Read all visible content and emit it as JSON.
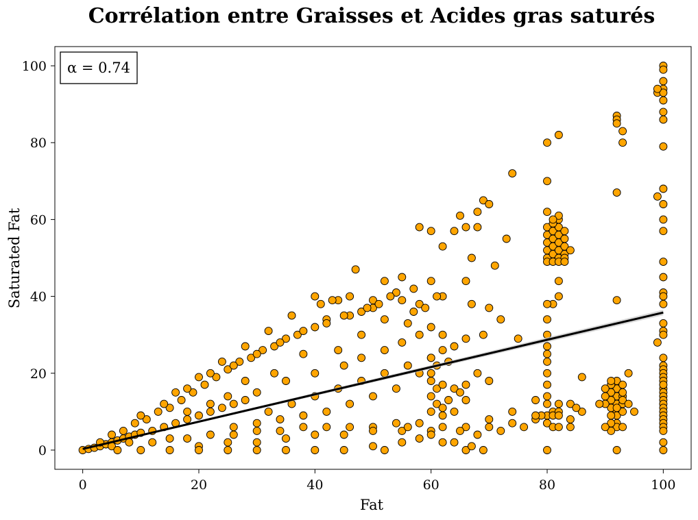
{
  "chart_data": {
    "type": "scatter",
    "title": "Corrélation entre Graisses et Acides gras saturés",
    "xlabel": "Fat",
    "ylabel": "Saturated Fat",
    "xlim": [
      -4.8,
      104.8
    ],
    "ylim": [
      -5,
      105
    ],
    "xticks": [
      0,
      20,
      40,
      60,
      80,
      100
    ],
    "yticks": [
      0,
      20,
      40,
      60,
      80,
      100
    ],
    "grid": false,
    "annotation": "α = 0.74",
    "marker_color": "#ffa500",
    "marker_edge_color": "#000000",
    "regression": {
      "x": [
        0,
        100
      ],
      "y": [
        0.3,
        35.8
      ],
      "color": "#000000",
      "ci_color": "#c8c8c8"
    },
    "points": [
      [
        0,
        0
      ],
      [
        1,
        0.3
      ],
      [
        2,
        0.6
      ],
      [
        3,
        1
      ],
      [
        4,
        1.5
      ],
      [
        5,
        2
      ],
      [
        6,
        2.5
      ],
      [
        7,
        3
      ],
      [
        8,
        3.5
      ],
      [
        9,
        4
      ],
      [
        10,
        4.5
      ],
      [
        12,
        5
      ],
      [
        14,
        6
      ],
      [
        16,
        7
      ],
      [
        18,
        8
      ],
      [
        20,
        9
      ],
      [
        22,
        10
      ],
      [
        24,
        11
      ],
      [
        26,
        12
      ],
      [
        28,
        13
      ],
      [
        3,
        2
      ],
      [
        5,
        4
      ],
      [
        7,
        5
      ],
      [
        9,
        7
      ],
      [
        11,
        8
      ],
      [
        13,
        10
      ],
      [
        15,
        11
      ],
      [
        17,
        13
      ],
      [
        19,
        15
      ],
      [
        21,
        17
      ],
      [
        23,
        19
      ],
      [
        25,
        21
      ],
      [
        27,
        23
      ],
      [
        29,
        24
      ],
      [
        31,
        26
      ],
      [
        33,
        27
      ],
      [
        35,
        29
      ],
      [
        37,
        30
      ],
      [
        40,
        32
      ],
      [
        42,
        34
      ],
      [
        10,
        9
      ],
      [
        14,
        12
      ],
      [
        18,
        16
      ],
      [
        22,
        20
      ],
      [
        26,
        22
      ],
      [
        30,
        25
      ],
      [
        34,
        28
      ],
      [
        38,
        31
      ],
      [
        42,
        33
      ],
      [
        46,
        35
      ],
      [
        50,
        37
      ],
      [
        44,
        39
      ],
      [
        40,
        40
      ],
      [
        47,
        47
      ],
      [
        36,
        35
      ],
      [
        32,
        31
      ],
      [
        28,
        27
      ],
      [
        24,
        23
      ],
      [
        20,
        19
      ],
      [
        16,
        15
      ],
      [
        5,
        1
      ],
      [
        8,
        2
      ],
      [
        12,
        2
      ],
      [
        15,
        3
      ],
      [
        18,
        3
      ],
      [
        22,
        4
      ],
      [
        26,
        4
      ],
      [
        30,
        5
      ],
      [
        34,
        5
      ],
      [
        38,
        6
      ],
      [
        42,
        6
      ],
      [
        46,
        6
      ],
      [
        50,
        6
      ],
      [
        54,
        7
      ],
      [
        58,
        7
      ],
      [
        62,
        6
      ],
      [
        66,
        6
      ],
      [
        70,
        6
      ],
      [
        74,
        7
      ],
      [
        78,
        8
      ],
      [
        20,
        1
      ],
      [
        25,
        2
      ],
      [
        30,
        2
      ],
      [
        35,
        3
      ],
      [
        40,
        4
      ],
      [
        45,
        4
      ],
      [
        50,
        5
      ],
      [
        55,
        5
      ],
      [
        60,
        5
      ],
      [
        65,
        5
      ],
      [
        68,
        4
      ],
      [
        72,
        5
      ],
      [
        76,
        6
      ],
      [
        80,
        7
      ],
      [
        84,
        8
      ],
      [
        86,
        10
      ],
      [
        82,
        12
      ],
      [
        78,
        13
      ],
      [
        74,
        10
      ],
      [
        70,
        8
      ],
      [
        6,
        0
      ],
      [
        10,
        0
      ],
      [
        15,
        0
      ],
      [
        20,
        0
      ],
      [
        25,
        0
      ],
      [
        30,
        0
      ],
      [
        35,
        0
      ],
      [
        40,
        0
      ],
      [
        45,
        0
      ],
      [
        50,
        1
      ],
      [
        52,
        0
      ],
      [
        55,
        2
      ],
      [
        58,
        3
      ],
      [
        62,
        2
      ],
      [
        66,
        0
      ],
      [
        67,
        1
      ],
      [
        69,
        0
      ],
      [
        64,
        2
      ],
      [
        60,
        4
      ],
      [
        56,
        6
      ],
      [
        30,
        15
      ],
      [
        35,
        18
      ],
      [
        40,
        20
      ],
      [
        45,
        22
      ],
      [
        48,
        24
      ],
      [
        52,
        26
      ],
      [
        55,
        28
      ],
      [
        58,
        30
      ],
      [
        60,
        32
      ],
      [
        62,
        30
      ],
      [
        56,
        33
      ],
      [
        52,
        34
      ],
      [
        48,
        30
      ],
      [
        44,
        26
      ],
      [
        38,
        25
      ],
      [
        33,
        20
      ],
      [
        28,
        18
      ],
      [
        25,
        14
      ],
      [
        22,
        12
      ],
      [
        18,
        10
      ],
      [
        32,
        10
      ],
      [
        36,
        12
      ],
      [
        40,
        14
      ],
      [
        44,
        16
      ],
      [
        48,
        18
      ],
      [
        52,
        20
      ],
      [
        56,
        22
      ],
      [
        60,
        24
      ],
      [
        64,
        27
      ],
      [
        66,
        29
      ],
      [
        62,
        26
      ],
      [
        58,
        20
      ],
      [
        54,
        16
      ],
      [
        50,
        14
      ],
      [
        46,
        12
      ],
      [
        42,
        10
      ],
      [
        38,
        9
      ],
      [
        34,
        8
      ],
      [
        30,
        7
      ],
      [
        26,
        6
      ],
      [
        45,
        35
      ],
      [
        48,
        36
      ],
      [
        50,
        39
      ],
      [
        52,
        44
      ],
      [
        55,
        45
      ],
      [
        57,
        42
      ],
      [
        60,
        44
      ],
      [
        62,
        40
      ],
      [
        58,
        38
      ],
      [
        55,
        39
      ],
      [
        54,
        41
      ],
      [
        57,
        36
      ],
      [
        59,
        37
      ],
      [
        61,
        40
      ],
      [
        53,
        40
      ],
      [
        51,
        38
      ],
      [
        49,
        37
      ],
      [
        46,
        40
      ],
      [
        43,
        39
      ],
      [
        41,
        38
      ],
      [
        58,
        58
      ],
      [
        60,
        57
      ],
      [
        62,
        53
      ],
      [
        64,
        57
      ],
      [
        65,
        61
      ],
      [
        66,
        58
      ],
      [
        67,
        50
      ],
      [
        68,
        62
      ],
      [
        69,
        65
      ],
      [
        70,
        64
      ],
      [
        68,
        58
      ],
      [
        71,
        48
      ],
      [
        73,
        55
      ],
      [
        74,
        72
      ],
      [
        66,
        44
      ],
      [
        67,
        38
      ],
      [
        70,
        37
      ],
      [
        72,
        34
      ],
      [
        75,
        29
      ],
      [
        69,
        30
      ],
      [
        60,
        18
      ],
      [
        61,
        16
      ],
      [
        60,
        14
      ],
      [
        61,
        12
      ],
      [
        62,
        11
      ],
      [
        63,
        13
      ],
      [
        60,
        20
      ],
      [
        60,
        24
      ],
      [
        61,
        22
      ],
      [
        62,
        17
      ],
      [
        63,
        23
      ],
      [
        64,
        16
      ],
      [
        65,
        15
      ],
      [
        66,
        17
      ],
      [
        68,
        20
      ],
      [
        70,
        18
      ],
      [
        66,
        13
      ],
      [
        64,
        10
      ],
      [
        62,
        9
      ],
      [
        60,
        10
      ],
      [
        80,
        50
      ],
      [
        80,
        52
      ],
      [
        80,
        54
      ],
      [
        80,
        56
      ],
      [
        80,
        58
      ],
      [
        81,
        51
      ],
      [
        81,
        53
      ],
      [
        81,
        55
      ],
      [
        81,
        57
      ],
      [
        82,
        50
      ],
      [
        82,
        52
      ],
      [
        82,
        54
      ],
      [
        82,
        56
      ],
      [
        82,
        58
      ],
      [
        82,
        60
      ],
      [
        83,
        51
      ],
      [
        83,
        53
      ],
      [
        83,
        55
      ],
      [
        83,
        57
      ],
      [
        83,
        50
      ],
      [
        80,
        49
      ],
      [
        81,
        49
      ],
      [
        82,
        49
      ],
      [
        83,
        49
      ],
      [
        84,
        52
      ],
      [
        80,
        62
      ],
      [
        81,
        59
      ],
      [
        82,
        61
      ],
      [
        81,
        60
      ],
      [
        80,
        80
      ],
      [
        80,
        70
      ],
      [
        82,
        82
      ],
      [
        82,
        44
      ],
      [
        82,
        40
      ],
      [
        81,
        38
      ],
      [
        80,
        38
      ],
      [
        80,
        34
      ],
      [
        80,
        30
      ],
      [
        80,
        27
      ],
      [
        80,
        25
      ],
      [
        80,
        23
      ],
      [
        80,
        20
      ],
      [
        80,
        17
      ],
      [
        80,
        14
      ],
      [
        80,
        12
      ],
      [
        80,
        9
      ],
      [
        81,
        10
      ],
      [
        81,
        9
      ],
      [
        82,
        10
      ],
      [
        82,
        9
      ],
      [
        80,
        7
      ],
      [
        81,
        6
      ],
      [
        82,
        6
      ],
      [
        80,
        0
      ],
      [
        84,
        6
      ],
      [
        84,
        12
      ],
      [
        85,
        11
      ],
      [
        86,
        19
      ],
      [
        79,
        9
      ],
      [
        78,
        9
      ],
      [
        92,
        87
      ],
      [
        92,
        86
      ],
      [
        92,
        85
      ],
      [
        93,
        83
      ],
      [
        93,
        80
      ],
      [
        92,
        67
      ],
      [
        92,
        39
      ],
      [
        92,
        18
      ],
      [
        92,
        16
      ],
      [
        92,
        14
      ],
      [
        92,
        12
      ],
      [
        92,
        10
      ],
      [
        92,
        9
      ],
      [
        92,
        7
      ],
      [
        92,
        6
      ],
      [
        92,
        0
      ],
      [
        93,
        14
      ],
      [
        93,
        12
      ],
      [
        93,
        10
      ],
      [
        93,
        17
      ],
      [
        91,
        15
      ],
      [
        91,
        13
      ],
      [
        91,
        11
      ],
      [
        91,
        9
      ],
      [
        91,
        17
      ],
      [
        91,
        18
      ],
      [
        90,
        14
      ],
      [
        90,
        12
      ],
      [
        90,
        16
      ],
      [
        93,
        13
      ],
      [
        94,
        12
      ],
      [
        95,
        10
      ],
      [
        94,
        20
      ],
      [
        89,
        12
      ],
      [
        91,
        7
      ],
      [
        93,
        6
      ],
      [
        91,
        5
      ],
      [
        90,
        6
      ],
      [
        92,
        11
      ],
      [
        93,
        15
      ],
      [
        100,
        100
      ],
      [
        100,
        99
      ],
      [
        100,
        96
      ],
      [
        100,
        94
      ],
      [
        100,
        91
      ],
      [
        100,
        88
      ],
      [
        100,
        86
      ],
      [
        99,
        93
      ],
      [
        100,
        93
      ],
      [
        100,
        79
      ],
      [
        100,
        68
      ],
      [
        100,
        64
      ],
      [
        100,
        60
      ],
      [
        100,
        57
      ],
      [
        99,
        66
      ],
      [
        100,
        49
      ],
      [
        100,
        45
      ],
      [
        100,
        41
      ],
      [
        100,
        40
      ],
      [
        100,
        38
      ],
      [
        100,
        33
      ],
      [
        100,
        31
      ],
      [
        100,
        30
      ],
      [
        99,
        28
      ],
      [
        100,
        22
      ],
      [
        100,
        21
      ],
      [
        100,
        20
      ],
      [
        100,
        19
      ],
      [
        100,
        18
      ],
      [
        100,
        16
      ],
      [
        100,
        15
      ],
      [
        100,
        14
      ],
      [
        100,
        13
      ],
      [
        100,
        12
      ],
      [
        100,
        11
      ],
      [
        100,
        10
      ],
      [
        100,
        9
      ],
      [
        100,
        8
      ],
      [
        100,
        7
      ],
      [
        100,
        6
      ],
      [
        100,
        5
      ],
      [
        100,
        2
      ],
      [
        100,
        0
      ],
      [
        100,
        17
      ],
      [
        100,
        24
      ],
      [
        99,
        94
      ]
    ]
  }
}
